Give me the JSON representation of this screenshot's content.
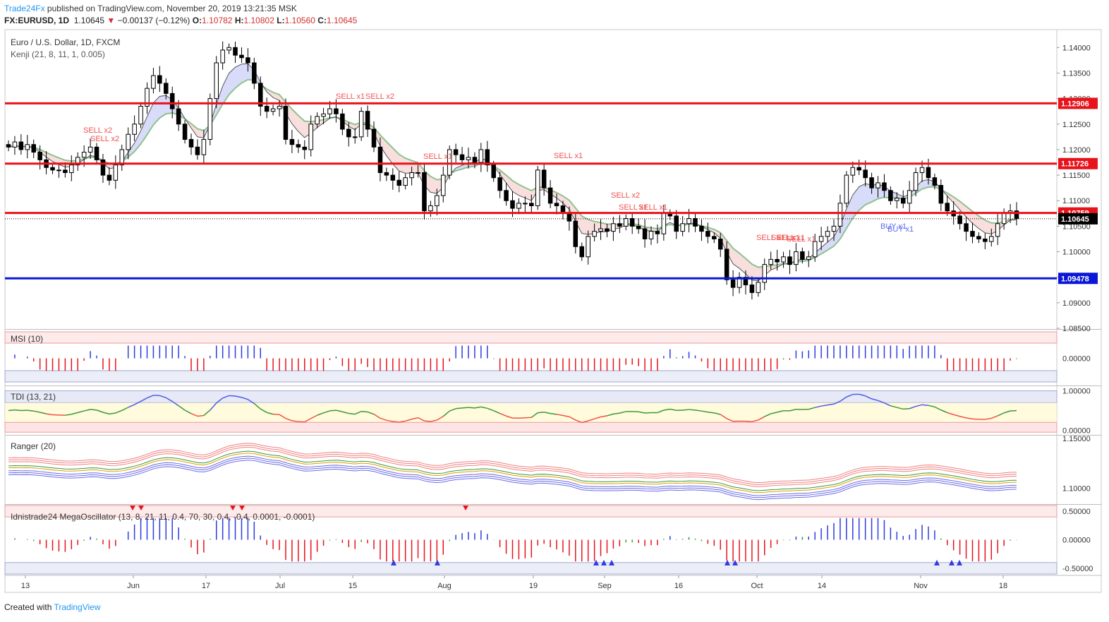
{
  "header": {
    "brand": "Trade24Fx",
    "published": " published on TradingView.com, November 20, 2019 13:21:35 MSK",
    "symbol": "FX:EURUSD, 1D",
    "last": "1.10645",
    "change": "−0.00137 (−0.12%)",
    "o_label": "O:",
    "o": "1.10782",
    "h_label": "H:",
    "h": "1.10802",
    "l_label": "L:",
    "l": "1.10560",
    "c_label": "C:",
    "c": "1.10645"
  },
  "footer": {
    "created": "Created with ",
    "tv": "TradingView"
  },
  "colors": {
    "up": "#ffffff",
    "down": "#000000",
    "red_level": "#e8121b",
    "blue_level": "#0a17d6",
    "sell": "#ef5350",
    "buy": "#5b6cf0",
    "kenji_green": "#8ec38e",
    "kenji_fast": "#000000"
  },
  "chart_data": [
    {
      "type": "candlestick",
      "title": "Euro / U.S. Dollar, 1D, FXCM",
      "indicator": "Kenji (21, 8, 11, 1, 0.005)",
      "x_ticks": [
        "13",
        "Jun",
        "17",
        "Jul",
        "15",
        "Aug",
        "19",
        "Sep",
        "16",
        "Oct",
        "14",
        "Nov",
        "18"
      ],
      "y_ticks": [
        "1.14000",
        "1.13500",
        "1.13000",
        "1.12500",
        "1.12000",
        "1.11500",
        "1.11000",
        "1.10500",
        "1.10000",
        "1.09500",
        "1.09000",
        "1.08500"
      ],
      "ylim": [
        1.085,
        1.1435
      ],
      "levels": [
        {
          "value": 1.12906,
          "label": "1.12906",
          "color": "#e8121b"
        },
        {
          "value": 1.11726,
          "label": "1.11726",
          "color": "#e8121b"
        },
        {
          "value": 1.10759,
          "label": "1.10759",
          "color": "#e8121b"
        },
        {
          "value": 1.09478,
          "label": "1.09478",
          "color": "#0a17d6"
        }
      ],
      "last_price": {
        "value": 1.10645,
        "label": "1.10645"
      },
      "annotations": [
        "SELL x2",
        "SELL x2",
        "SELL x1",
        "SELL x2",
        "SELL x1",
        "SELL x1",
        "SELL x2",
        "SELL x1",
        "SELL x1",
        "SELL x1",
        "SELL x1",
        "SELL x1",
        "SELL x1",
        "BUY x1",
        "BUY x1"
      ],
      "closes": [
        1.1205,
        1.1215,
        1.12,
        1.121,
        1.1195,
        1.118,
        1.1165,
        1.116,
        1.116,
        1.1155,
        1.117,
        1.1185,
        1.1195,
        1.1205,
        1.118,
        1.115,
        1.114,
        1.117,
        1.12,
        1.123,
        1.125,
        1.1285,
        1.132,
        1.1345,
        1.133,
        1.131,
        1.128,
        1.125,
        1.122,
        1.1205,
        1.119,
        1.122,
        1.13,
        1.137,
        1.1395,
        1.14,
        1.1385,
        1.138,
        1.137,
        1.133,
        1.1285,
        1.1275,
        1.128,
        1.1285,
        1.122,
        1.121,
        1.1205,
        1.12,
        1.125,
        1.1265,
        1.127,
        1.128,
        1.127,
        1.124,
        1.1225,
        1.1225,
        1.1275,
        1.124,
        1.1205,
        1.1155,
        1.115,
        1.114,
        1.113,
        1.1145,
        1.1155,
        1.1155,
        1.108,
        1.109,
        1.111,
        1.115,
        1.12,
        1.119,
        1.118,
        1.1185,
        1.1175,
        1.12,
        1.117,
        1.1145,
        1.112,
        1.11,
        1.1085,
        1.1095,
        1.1095,
        1.109,
        1.116,
        1.1125,
        1.1095,
        1.109,
        1.1075,
        1.106,
        1.101,
        1.099,
        1.103,
        1.104,
        1.1045,
        1.104,
        1.1055,
        1.105,
        1.1065,
        1.105,
        1.1045,
        1.1025,
        1.104,
        1.1035,
        1.1075,
        1.107,
        1.104,
        1.1055,
        1.1065,
        1.105,
        1.104,
        1.103,
        1.1025,
        1.1005,
        1.0945,
        1.093,
        1.095,
        1.0935,
        1.092,
        1.094,
        1.0975,
        1.0985,
        1.098,
        1.099,
        1.0975,
        1.1,
        1.0985,
        1.099,
        1.102,
        1.103,
        1.104,
        1.105,
        1.1095,
        1.115,
        1.1165,
        1.116,
        1.1145,
        1.1125,
        1.1135,
        1.112,
        1.11,
        1.1105,
        1.1095,
        1.112,
        1.1155,
        1.1165,
        1.1145,
        1.113,
        1.1095,
        1.108,
        1.107,
        1.1055,
        1.104,
        1.103,
        1.1025,
        1.102,
        1.103,
        1.1055,
        1.1075,
        1.108,
        1.1065
      ]
    },
    {
      "type": "bar",
      "title": "MSI (10)",
      "y_ticks": [
        "0.00000"
      ],
      "ylim": [
        -0.0003,
        0.0003
      ]
    },
    {
      "type": "line",
      "title": "TDI (13, 21)",
      "y_ticks": [
        "1.00000",
        "0.00000"
      ],
      "ylim": [
        -0.1,
        1.1
      ]
    },
    {
      "type": "line",
      "title": "Ranger (20)",
      "y_ticks": [
        "1.15000",
        "1.10000"
      ],
      "ylim": [
        1.085,
        1.152
      ]
    },
    {
      "type": "bar",
      "title": "Idnistrade24 MegaOscillator (13, 8, 21, 11, 0.4, 70, 30, 0.4, -0.4, 0.0001, -0.0001)",
      "y_ticks": [
        "0.50000",
        "0.00000",
        "-0.50000"
      ],
      "ylim": [
        -0.6,
        0.6
      ]
    }
  ]
}
